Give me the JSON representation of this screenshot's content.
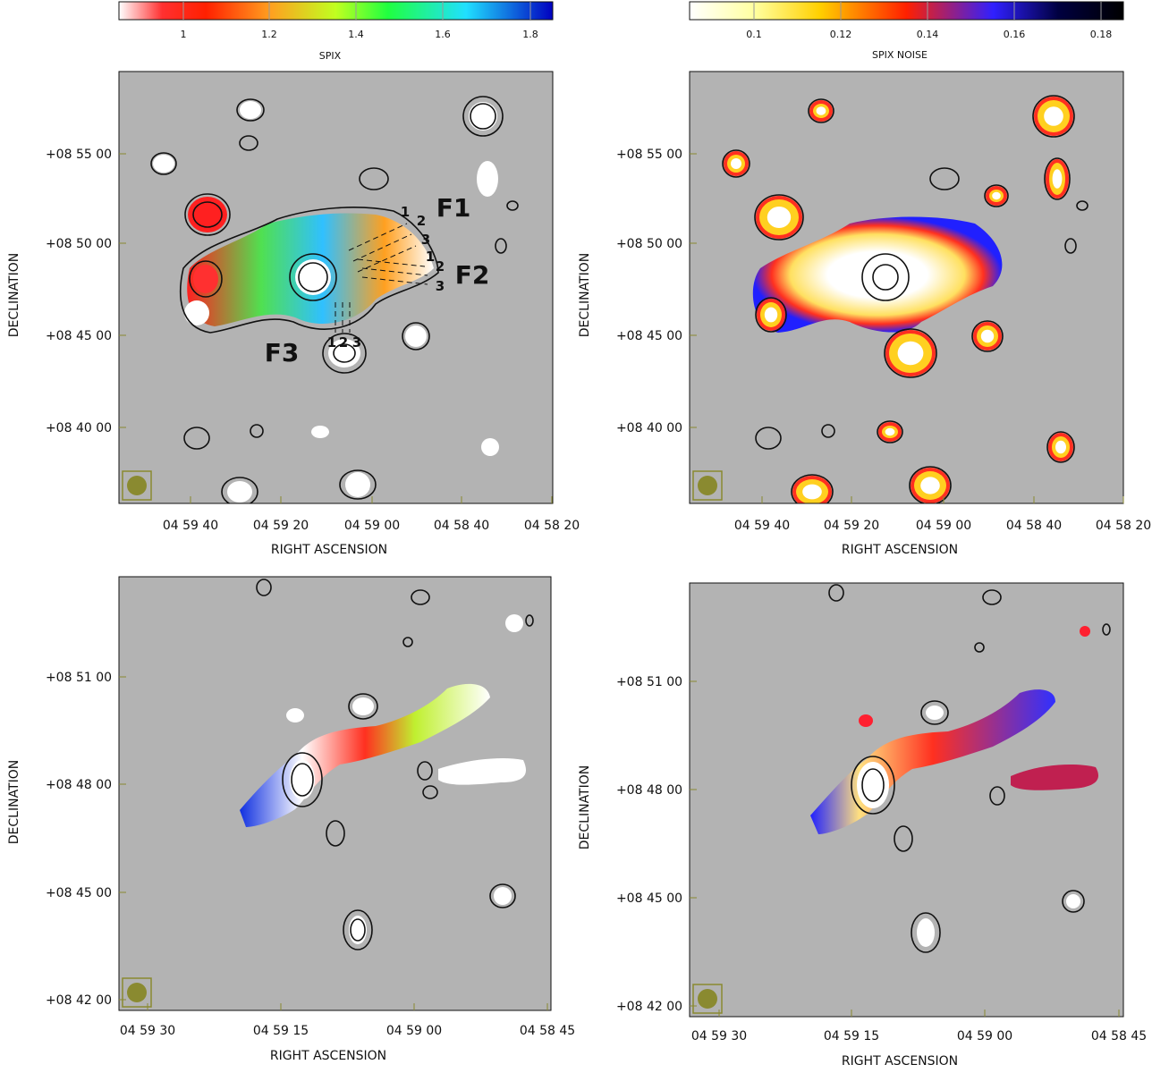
{
  "panels": [
    {
      "colorbar": {
        "ticks": [
          "1",
          "1.2",
          "1.4",
          "1.6",
          "1.8"
        ],
        "label": "SPIX"
      },
      "y_ticks": [
        "+08 55 00",
        "+08 50 00",
        "+08 45 00",
        "+08 40 00"
      ],
      "x_ticks": [
        "04 59 40",
        "04 59 20",
        "04 59 00",
        "04 58 40",
        "04 58 20"
      ],
      "x_label": "RIGHT ASCENSION",
      "y_label": "DECLINATION",
      "annotations": [
        "F1",
        "F2",
        "F3",
        "1",
        "2",
        "3",
        "1",
        "2",
        "3",
        "1",
        "2",
        "3"
      ]
    },
    {
      "colorbar": {
        "ticks": [
          "0.1",
          "0.12",
          "0.14",
          "0.16",
          "0.18"
        ],
        "label": "SPIX NOISE"
      },
      "y_ticks": [
        "+08 55 00",
        "+08 50 00",
        "+08 45 00",
        "+08 40 00"
      ],
      "x_ticks": [
        "04 59 40",
        "04 59 20",
        "04 59 00",
        "04 58 40",
        "04 58 20"
      ],
      "x_label": "RIGHT ASCENSION",
      "y_label": "DECLINATION"
    },
    {
      "y_ticks": [
        "+08 51 00",
        "+08 48 00",
        "+08 45 00",
        "+08 42 00"
      ],
      "x_ticks": [
        "04 59 30",
        "04 59 15",
        "04 59 00",
        "04 58 45"
      ],
      "x_label": "RIGHT ASCENSION",
      "y_label": "DECLINATION"
    },
    {
      "y_ticks": [
        "+08 51 00",
        "+08 48 00",
        "+08 45 00",
        "+08 42 00"
      ],
      "x_ticks": [
        "04 59 30",
        "04 59 15",
        "04 59 00",
        "04 58 45"
      ],
      "x_label": "RIGHT ASCENSION",
      "y_label": "DECLINATION"
    }
  ]
}
